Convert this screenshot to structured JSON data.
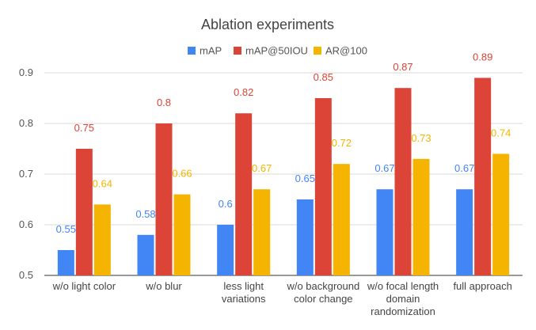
{
  "chart_data": {
    "type": "bar",
    "title": "Ablation experiments",
    "categories": [
      [
        "w/o light color"
      ],
      [
        "w/o blur"
      ],
      [
        "less light",
        "variations"
      ],
      [
        "w/o background",
        "color change"
      ],
      [
        "w/o focal length",
        "domain",
        "randomization"
      ],
      [
        "full approach"
      ]
    ],
    "series": [
      {
        "name": "mAP",
        "color": "#4285F4",
        "values": [
          0.55,
          0.58,
          0.6,
          0.65,
          0.67,
          0.67
        ]
      },
      {
        "name": "mAP@50IOU",
        "color": "#DB4437",
        "values": [
          0.75,
          0.8,
          0.82,
          0.85,
          0.87,
          0.89
        ]
      },
      {
        "name": "AR@100",
        "color": "#F4B400",
        "values": [
          0.64,
          0.66,
          0.67,
          0.72,
          0.73,
          0.74
        ]
      }
    ],
    "ylim": [
      0.5,
      0.9
    ],
    "yticks": [
      "0.5",
      "0.6",
      "0.7",
      "0.8",
      "0.9"
    ],
    "grid": true,
    "legend": "top"
  }
}
